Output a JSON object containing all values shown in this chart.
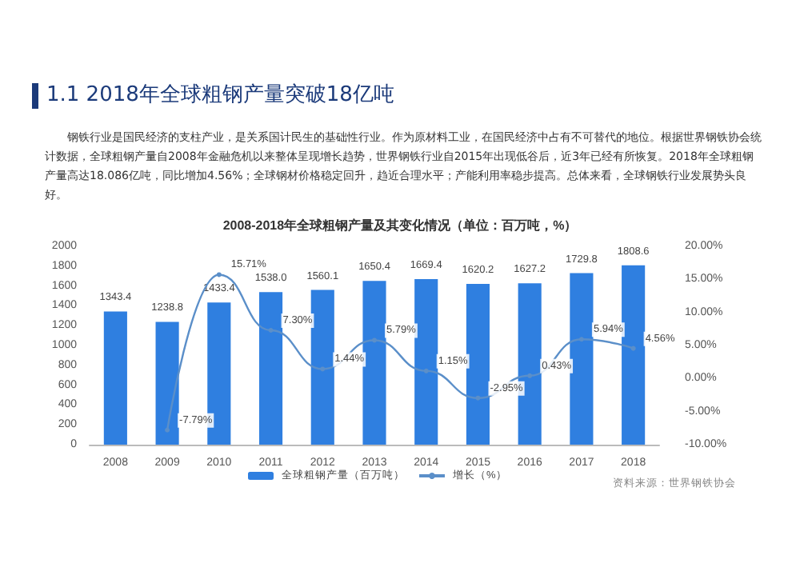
{
  "chart_data": {
    "type": "bar",
    "title": "1.1  2018年全球粗钢产量突破18亿吨",
    "subtitle": "2008-2018年全球粗钢产量及其变化情况（单位：百万吨，%）",
    "annotations": [
      "钢铁行业是国民经济的支柱产业，是关系国计民生的基础性行业。作为原材料工业，在国民经济中占有不可替代的地位。根据世界钢铁协会统计数据，全球粗钢产量自2008年金融危机以来整体呈现增长趋势，世界钢铁行业自2015年出现低谷后，近3年已经有所恢复。2018年全球粗钢产量高达18.086亿吨，同比增加4.56%；全球钢材价格稳定回升，趋近合理水平；产能利用率稳步提高。总体来看，全球钢铁行业发展势头良好。",
      "资料来源：世界钢铁协会"
    ],
    "categories": [
      "2008",
      "2009",
      "2010",
      "2011",
      "2012",
      "2013",
      "2014",
      "2015",
      "2016",
      "2017",
      "2018"
    ],
    "series": [
      {
        "name": "全球粗钢产量（百万吨）",
        "color": "#2f7fe0",
        "values": [
          1343.4,
          1238.8,
          1433.4,
          1538.0,
          1560.1,
          1650.4,
          1669.4,
          1620.2,
          1627.2,
          1729.8,
          1808.6
        ],
        "value_labels": [
          "1343.4",
          "1238.8",
          "1433.4",
          "1538.0",
          "1560.1",
          "1650.4",
          "1669.4",
          "1620.2",
          "1627.2",
          "1729.8",
          "1808.6"
        ]
      },
      {
        "name": "增长（%）",
        "type": "line",
        "axis": "y2",
        "color": "#5b8fc9",
        "marker": "circle",
        "values": [
          null,
          -7.79,
          15.71,
          7.3,
          1.44,
          5.79,
          1.15,
          -2.95,
          0.43,
          5.94,
          4.56
        ],
        "value_labels": [
          null,
          "-7.79%",
          "15.71%",
          "7.30%",
          "1.44%",
          "5.79%",
          "1.15%",
          "-2.95%",
          "0.43%",
          "5.94%",
          "4.56%"
        ]
      }
    ],
    "ylim": [
      0,
      2000
    ],
    "yticks": [
      0,
      200,
      400,
      600,
      800,
      1000,
      1200,
      1400,
      1600,
      1800,
      2000
    ],
    "y2lim": [
      -10,
      20
    ],
    "y2ticks": [
      {
        "value": -10,
        "label": "-10.00%"
      },
      {
        "value": -5,
        "label": "-5.00%"
      },
      {
        "value": 0,
        "label": "0.00%"
      },
      {
        "value": 5,
        "label": "5.00%"
      },
      {
        "value": 10,
        "label": "10.00%"
      },
      {
        "value": 15,
        "label": "15.00%"
      },
      {
        "value": 20,
        "label": "20.00%"
      }
    ],
    "legend": "bottom",
    "grid": false
  }
}
